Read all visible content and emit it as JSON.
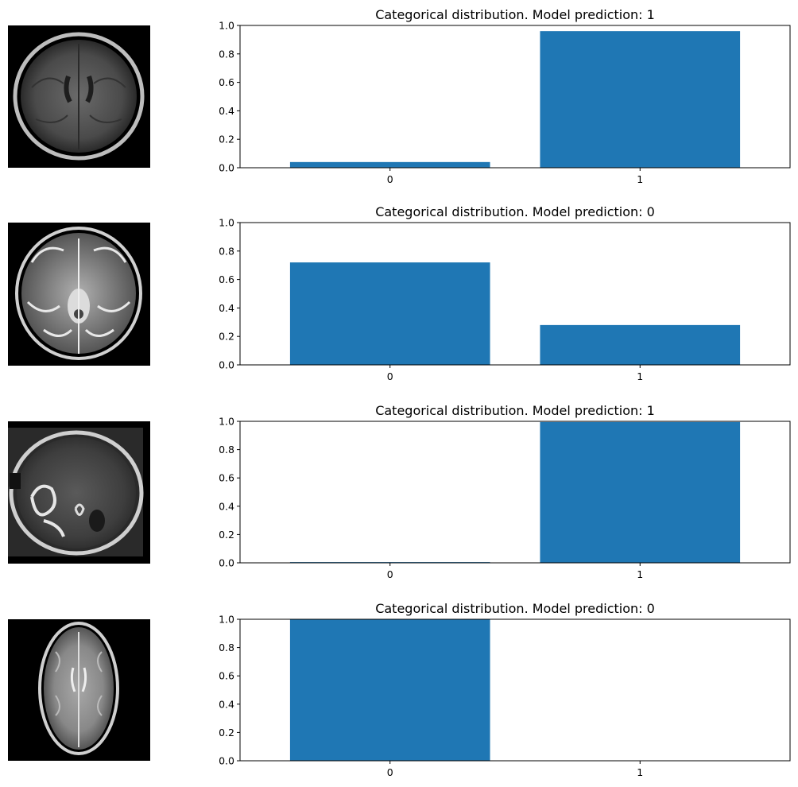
{
  "bar_color": "#1f77b4",
  "chart_data": [
    {
      "type": "bar",
      "title": "Categorical distribution. Model prediction: 1",
      "categories": [
        "0",
        "1"
      ],
      "values": [
        0.04,
        0.96
      ],
      "ylim": [
        0,
        1.0
      ],
      "yticks": [
        "0.0",
        "0.2",
        "0.4",
        "0.6",
        "0.8",
        "1.0"
      ],
      "image": "mri-axial-flair"
    },
    {
      "type": "bar",
      "title": "Categorical distribution. Model prediction: 0",
      "categories": [
        "0",
        "1"
      ],
      "values": [
        0.72,
        0.28
      ],
      "ylim": [
        0,
        1.0
      ],
      "yticks": [
        "0.0",
        "0.2",
        "0.4",
        "0.6",
        "0.8",
        "1.0"
      ],
      "image": "mri-axial-t2"
    },
    {
      "type": "bar",
      "title": "Categorical distribution. Model prediction: 1",
      "categories": [
        "0",
        "1"
      ],
      "values": [
        0.005,
        0.995
      ],
      "ylim": [
        0,
        1.0
      ],
      "yticks": [
        "0.0",
        "0.2",
        "0.4",
        "0.6",
        "0.8",
        "1.0"
      ],
      "image": "mri-axial-t1-contrast-tumor"
    },
    {
      "type": "bar",
      "title": "Categorical distribution. Model prediction: 0",
      "categories": [
        "0",
        "1"
      ],
      "values": [
        1.0,
        0.0
      ],
      "ylim": [
        0,
        1.0
      ],
      "yticks": [
        "0.0",
        "0.2",
        "0.4",
        "0.6",
        "0.8",
        "1.0"
      ],
      "image": "mri-axial-t2-oval"
    }
  ]
}
